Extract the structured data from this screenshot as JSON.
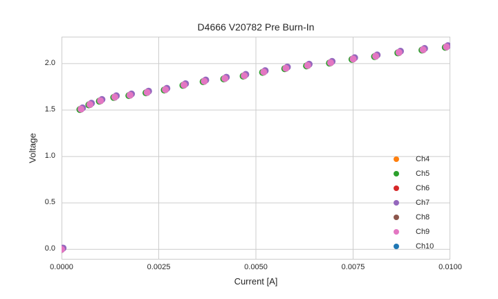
{
  "colors": {
    "background": "#ffffff",
    "grid": "#cccccc",
    "spine": "#cccccc",
    "text": "#262626"
  },
  "chart_data": {
    "type": "scatter",
    "title": "D4666 V20782 Pre Burn-In",
    "xlabel": "Current [A]",
    "ylabel": "Voltage",
    "xlim": [
      0,
      0.01
    ],
    "ylim": [
      -0.11,
      2.29
    ],
    "grid": true,
    "legend_position": "lower right",
    "xticks": {
      "values": [
        0,
        0.0025,
        0.005,
        0.0075,
        0.01
      ],
      "labels": [
        "0.0000",
        "0.0025",
        "0.0050",
        "0.0075",
        "0.0100"
      ]
    },
    "yticks": {
      "values": [
        0,
        0.5,
        1.0,
        1.5,
        2.0
      ],
      "labels": [
        "0.0",
        "0.5",
        "1.0",
        "1.5",
        "2.0"
      ]
    },
    "x": [
      0.0,
      0.0005,
      0.00073,
      0.001,
      0.00137,
      0.00176,
      0.0022,
      0.00267,
      0.00315,
      0.00367,
      0.0042,
      0.0047,
      0.0052,
      0.00577,
      0.00633,
      0.00692,
      0.0075,
      0.00808,
      0.00868,
      0.0093,
      0.0099
    ],
    "y": [
      0.0,
      1.51,
      1.56,
      1.6,
      1.64,
      1.66,
      1.69,
      1.72,
      1.77,
      1.81,
      1.84,
      1.87,
      1.91,
      1.95,
      1.98,
      2.01,
      2.05,
      2.08,
      2.12,
      2.15,
      2.18
    ],
    "series": [
      {
        "name": "Ch4",
        "color": "#ff7f0e"
      },
      {
        "name": "Ch5",
        "color": "#2ca02c"
      },
      {
        "name": "Ch6",
        "color": "#d62728"
      },
      {
        "name": "Ch7",
        "color": "#9467bd"
      },
      {
        "name": "Ch8",
        "color": "#8c564b"
      },
      {
        "name": "Ch9",
        "color": "#e377c2"
      },
      {
        "name": "Ch10",
        "color": "#1f77b4"
      }
    ]
  }
}
